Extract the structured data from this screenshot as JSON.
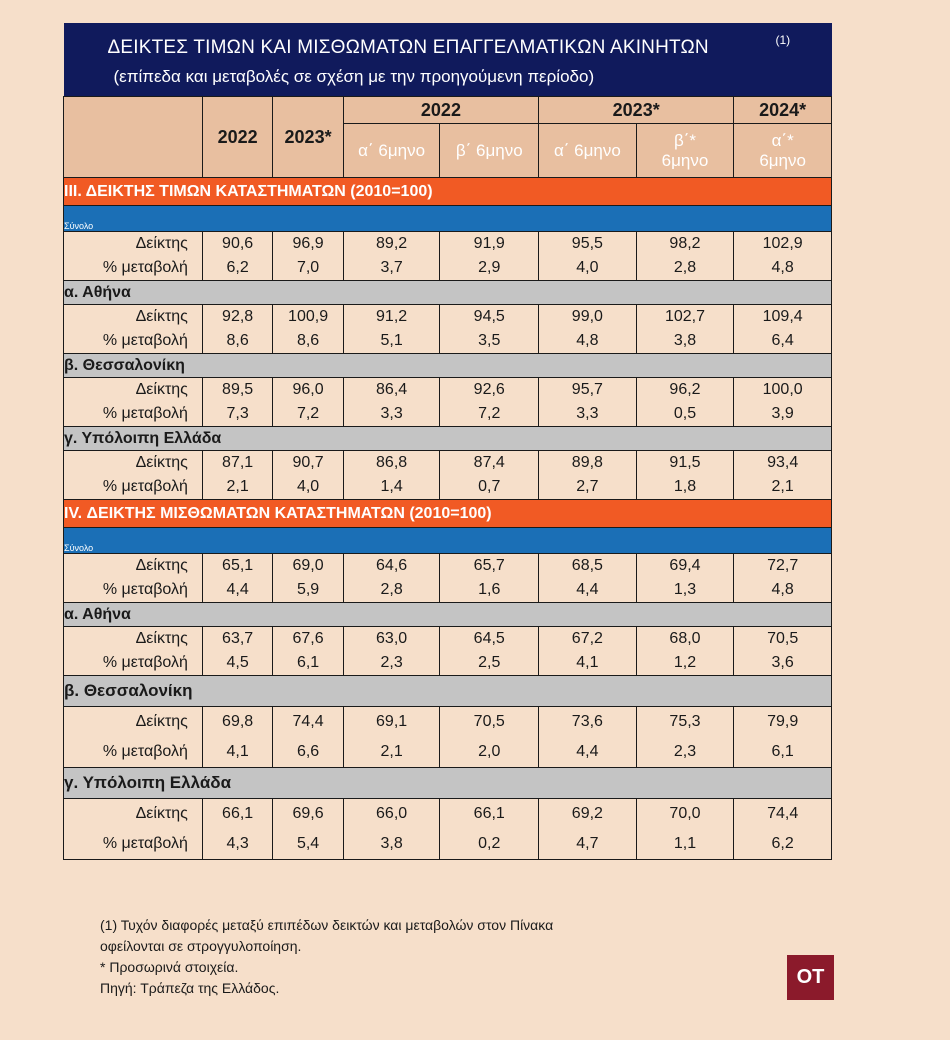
{
  "title": "ΔΕΙΚΤΕΣ ΤΙΜΩΝ ΚΑΙ ΜΙΣΘΩΜΑΤΩΝ ΕΠΑΓΓΕΛΜΑΤΙΚΩΝ ΑΚΙΝΗΤΩΝ",
  "title_note_mark": "(1)",
  "subtitle": "(επίπεδα και μεταβολές σε σχέση με την προηγούμενη περίοδο)",
  "header": {
    "col_2022": "2022",
    "col_2023": "2023*",
    "group_2022": "2022",
    "group_2023": "2023*",
    "group_2024": "2024*",
    "h1_2022": "α΄ 6μηνο",
    "h2_2022": "β΄ 6μηνο",
    "h1_2023": "α΄ 6μηνο",
    "h2_2023": "β΄* 6μηνο",
    "h1_2024": "α΄* 6μηνο"
  },
  "row_label_index": "Δείκτης",
  "row_label_change": "% μεταβολή",
  "chart_data": {
    "type": "table",
    "columns": [
      "2022",
      "2023*",
      "2022 α΄ 6μηνο",
      "2022 β΄ 6μηνο",
      "2023* α΄ 6μηνο",
      "2023* β΄* 6μηνο",
      "2024* α΄* 6μηνο"
    ],
    "sections": [
      {
        "title": "ΙΙΙ. ΔΕΙΚΤΗΣ ΤΙΜΩΝ ΚΑΤΑΣΤΗΜΑΤΩΝ (2010=100)",
        "groups": [
          {
            "name": "Σύνολο",
            "index": [
              "90,6",
              "96,9",
              "89,2",
              "91,9",
              "95,5",
              "98,2",
              "102,9"
            ],
            "change": [
              "6,2",
              "7,0",
              "3,7",
              "2,9",
              "4,0",
              "2,8",
              "4,8"
            ]
          },
          {
            "name": "α. Αθήνα",
            "index": [
              "92,8",
              "100,9",
              "91,2",
              "94,5",
              "99,0",
              "102,7",
              "109,4"
            ],
            "change": [
              "8,6",
              "8,6",
              "5,1",
              "3,5",
              "4,8",
              "3,8",
              "6,4"
            ]
          },
          {
            "name": "β. Θεσσαλονίκη",
            "index": [
              "89,5",
              "96,0",
              "86,4",
              "92,6",
              "95,7",
              "96,2",
              "100,0"
            ],
            "change": [
              "7,3",
              "7,2",
              "3,3",
              "7,2",
              "3,3",
              "0,5",
              "3,9"
            ]
          },
          {
            "name": "γ. Υπόλοιπη Ελλάδα",
            "index": [
              "87,1",
              "90,7",
              "86,8",
              "87,4",
              "89,8",
              "91,5",
              "93,4"
            ],
            "change": [
              "2,1",
              "4,0",
              "1,4",
              "0,7",
              "2,7",
              "1,8",
              "2,1"
            ]
          }
        ]
      },
      {
        "title": "IV. ΔΕΙΚΤΗΣ ΜΙΣΘΩΜΑΤΩΝ ΚΑΤΑΣΤΗΜΑΤΩΝ (2010=100)",
        "groups": [
          {
            "name": "Σύνολο",
            "index": [
              "65,1",
              "69,0",
              "64,6",
              "65,7",
              "68,5",
              "69,4",
              "72,7"
            ],
            "change": [
              "4,4",
              "5,9",
              "2,8",
              "1,6",
              "4,4",
              "1,3",
              "4,8"
            ]
          },
          {
            "name": "α. Αθήνα",
            "index": [
              "63,7",
              "67,6",
              "63,0",
              "64,5",
              "67,2",
              "68,0",
              "70,5"
            ],
            "change": [
              "4,5",
              "6,1",
              "2,3",
              "2,5",
              "4,1",
              "1,2",
              "3,6"
            ]
          },
          {
            "name": "β. Θεσσαλονίκη",
            "index": [
              "69,8",
              "74,4",
              "69,1",
              "70,5",
              "73,6",
              "75,3",
              "79,9"
            ],
            "change": [
              "4,1",
              "6,6",
              "2,1",
              "2,0",
              "4,4",
              "2,3",
              "6,1"
            ]
          },
          {
            "name": "γ. Υπόλοιπη Ελλάδα",
            "index": [
              "66,1",
              "69,6",
              "66,0",
              "66,1",
              "69,2",
              "70,0",
              "74,4"
            ],
            "change": [
              "4,3",
              "5,4",
              "3,8",
              "0,2",
              "4,7",
              "1,1",
              "6,2"
            ]
          }
        ]
      }
    ]
  },
  "notes": [
    "(1) Τυχόν διαφορές μεταξύ επιπέδων δεικτών και μεταβολών στον Πίνακα",
    "οφείλονται σε στρογγυλοποίηση.",
    "* Προσωρινά στοιχεία.",
    "Πηγή: Τράπεζα της Ελλάδος."
  ],
  "badge": "ΟΤ",
  "colors": {
    "background": "#f6dfca",
    "title_bar": "#101a5c",
    "header": "#e8bfa0",
    "section_bar": "#f15a24",
    "total_bar": "#1b6fb6",
    "region_bar": "#c4c4c4",
    "badge": "#8b1a2b"
  }
}
